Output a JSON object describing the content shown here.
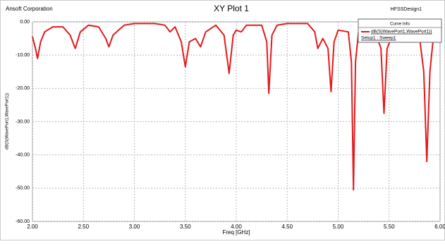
{
  "chart_data": {
    "type": "line",
    "company": "Ansoft Corporation",
    "title": "XY Plot 1",
    "design": "HFSSDesign1",
    "xlabel": "Freq [GHz]",
    "ylabel": "dB(S(WavePort1,WavePort1))",
    "legend_title": "Curve Info",
    "legend_subtitle": "Setup1 : Sweep1",
    "legend_position": "upper right",
    "grid": true,
    "xlim": [
      2.0,
      6.0
    ],
    "ylim": [
      -60,
      0
    ],
    "xticks": [
      {
        "value": 2.0,
        "label": "2.00"
      },
      {
        "value": 2.5,
        "label": "2.50"
      },
      {
        "value": 3.0,
        "label": "3.00"
      },
      {
        "value": 3.5,
        "label": "3.50"
      },
      {
        "value": 4.0,
        "label": "4.00"
      },
      {
        "value": 4.5,
        "label": "4.50"
      },
      {
        "value": 5.0,
        "label": "5.00"
      },
      {
        "value": 5.5,
        "label": "5.50"
      },
      {
        "value": 6.0,
        "label": "6.00"
      }
    ],
    "yticks": [
      {
        "value": 0,
        "label": "0.00"
      },
      {
        "value": -10,
        "label": "-10.00"
      },
      {
        "value": -20,
        "label": "-20.00"
      },
      {
        "value": -30,
        "label": "-30.00"
      },
      {
        "value": -40,
        "label": "-40.00"
      },
      {
        "value": -50,
        "label": "-50.00"
      },
      {
        "value": -60,
        "label": "-60.00"
      }
    ],
    "x": [
      2.0,
      2.03,
      2.05,
      2.08,
      2.12,
      2.2,
      2.3,
      2.37,
      2.42,
      2.47,
      2.55,
      2.65,
      2.72,
      2.75,
      2.79,
      2.9,
      3.0,
      3.2,
      3.3,
      3.35,
      3.4,
      3.46,
      3.5,
      3.54,
      3.6,
      3.65,
      3.7,
      3.8,
      3.88,
      3.93,
      3.97,
      4.0,
      4.05,
      4.1,
      4.25,
      4.3,
      4.32,
      4.35,
      4.4,
      4.5,
      4.7,
      4.77,
      4.8,
      4.85,
      4.9,
      4.93,
      4.96,
      5.0,
      5.1,
      5.13,
      5.15,
      5.17,
      5.2,
      5.35,
      5.42,
      5.45,
      5.48,
      5.55,
      5.7,
      5.8,
      5.84,
      5.87,
      5.9,
      5.94,
      6.0
    ],
    "series": [
      {
        "name": "dB(S(WavePort1,WavePort1))",
        "color": "#e31a1c",
        "values": [
          -4.4,
          -8,
          -11,
          -6,
          -3,
          -1.5,
          -1.5,
          -4,
          -8,
          -3,
          -1,
          -1.5,
          -5,
          -7.5,
          -4,
          -1,
          -0.5,
          -0.5,
          -1,
          -3,
          -1.5,
          -6,
          -13.5,
          -6,
          -5,
          -7.5,
          -3,
          -1,
          -4,
          -15.5,
          -4,
          -2.5,
          -3,
          -1,
          -1,
          -6,
          -21.5,
          -4,
          -1,
          -0.5,
          -0.5,
          -3,
          -8,
          -5,
          -8,
          -21,
          -6,
          -2.5,
          -3,
          -12,
          -50.5,
          -12,
          -3,
          -2,
          -8,
          -27.5,
          -8,
          -2.5,
          -2,
          -5,
          -15,
          -42,
          -15,
          -3,
          -3
        ]
      }
    ]
  }
}
